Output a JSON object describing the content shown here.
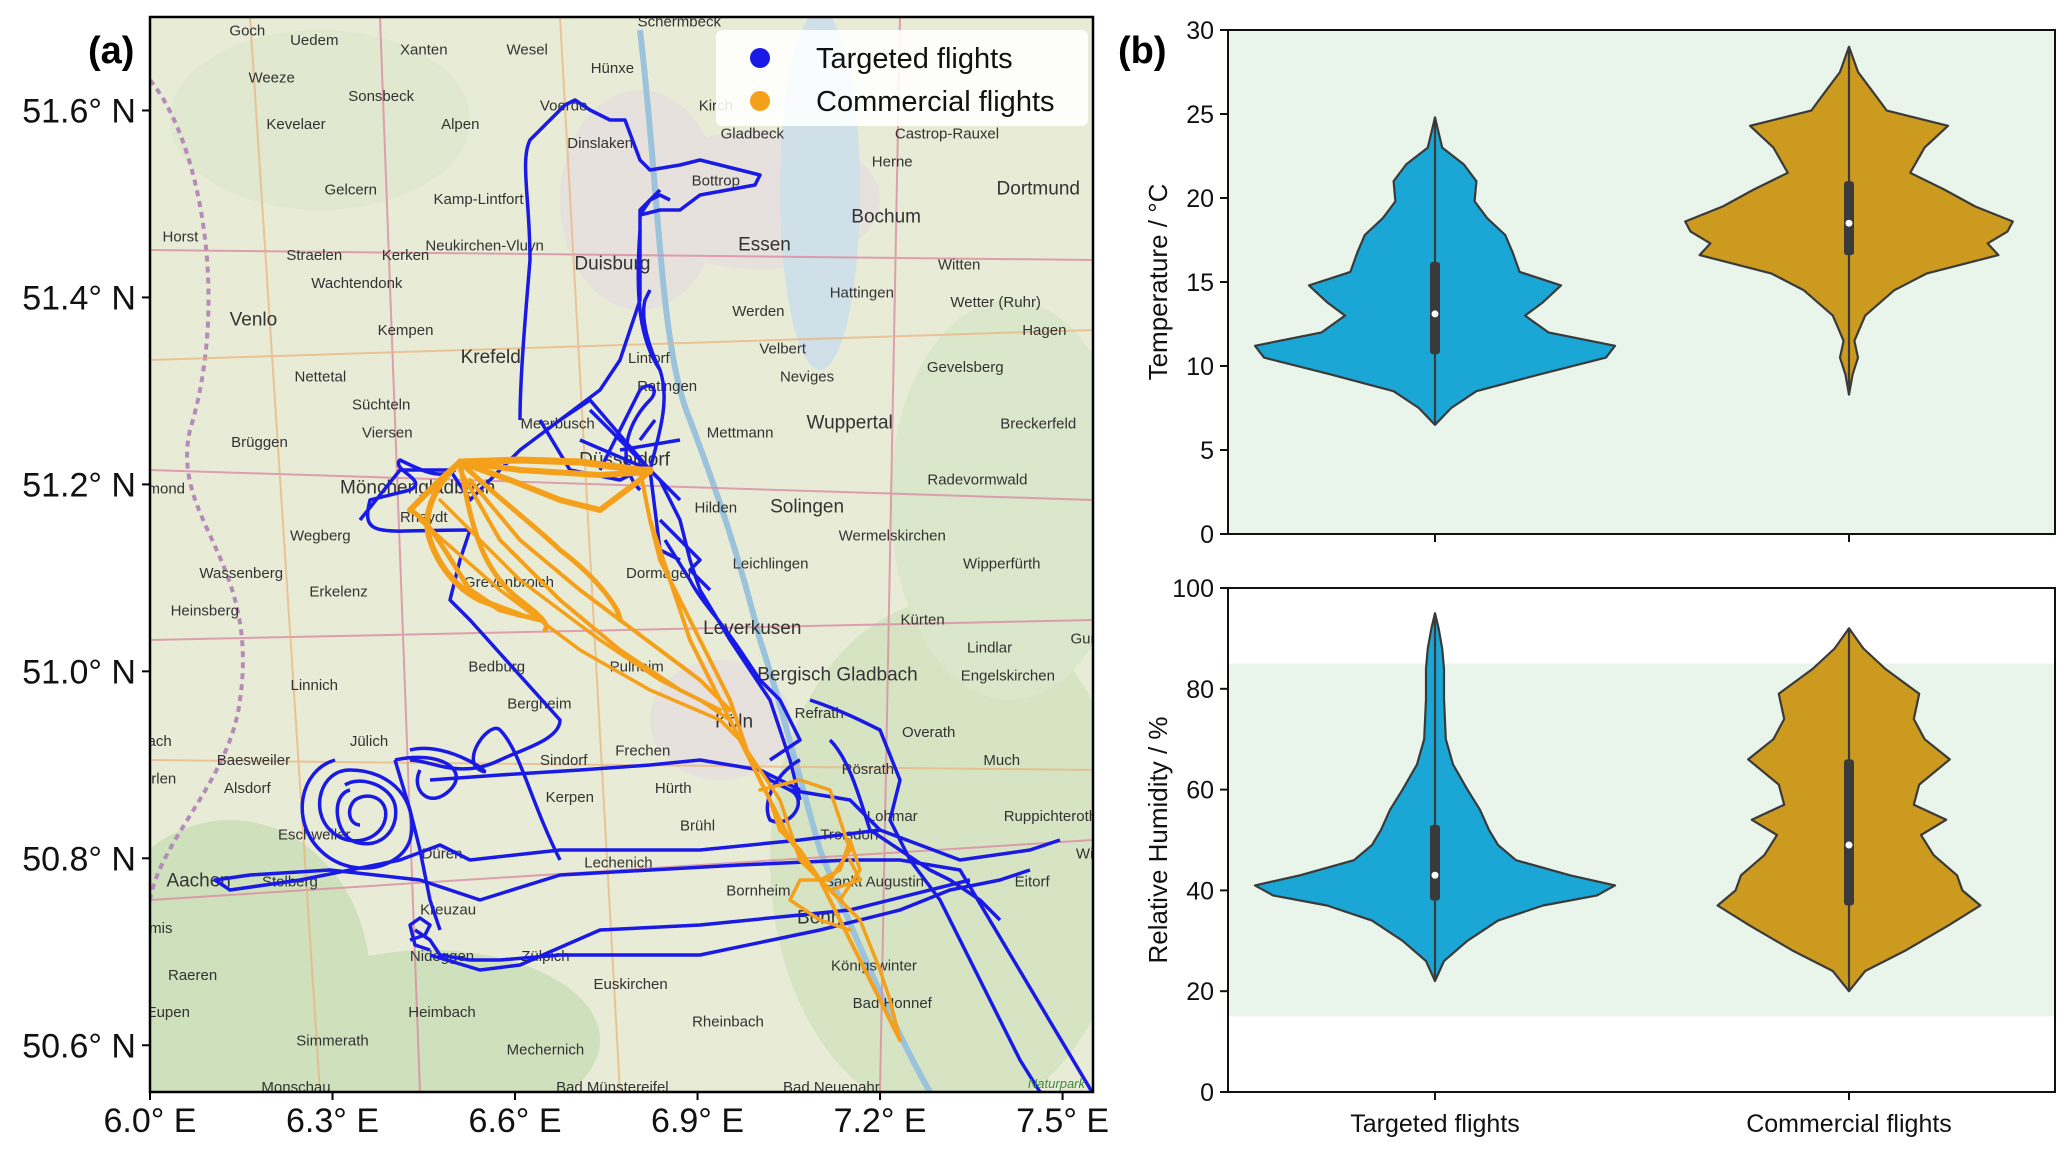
{
  "panel_a_label": "(a)",
  "panel_b_label": "(b)",
  "colors": {
    "targeted_track": "#1a1ae6",
    "commercial_track": "#f5a01a",
    "targeted_violin": "#1aa7d6",
    "commercial_violin": "#cc9a1e",
    "background_band": "#e9f4ea"
  },
  "chart_data": [
    {
      "type": "map",
      "panel": "(a)",
      "x_ticks": [
        "6.0° E",
        "6.3° E",
        "6.6° E",
        "6.9° E",
        "7.2° E",
        "7.5° E"
      ],
      "y_ticks": [
        "51.6° N",
        "51.4° N",
        "51.2° N",
        "51.0° N",
        "50.8° N",
        "50.6° N"
      ],
      "xlim": [
        6.0,
        7.55
      ],
      "ylim": [
        50.55,
        51.7
      ],
      "legend": [
        "Targeted flights",
        "Commercial flights"
      ],
      "legend_position": "top-right",
      "attribution": "Naturpark",
      "places": [
        {
          "name": "Schermbeck",
          "lon": 6.87,
          "lat": 51.69
        },
        {
          "name": "Goch",
          "lon": 6.16,
          "lat": 51.68
        },
        {
          "name": "Uedem",
          "lon": 6.27,
          "lat": 51.67
        },
        {
          "name": "Xanten",
          "lon": 6.45,
          "lat": 51.66
        },
        {
          "name": "Wesel",
          "lon": 6.62,
          "lat": 51.66
        },
        {
          "name": "Hünxe",
          "lon": 6.76,
          "lat": 51.64
        },
        {
          "name": "Weeze",
          "lon": 6.2,
          "lat": 51.63
        },
        {
          "name": "Sonsbeck",
          "lon": 6.38,
          "lat": 51.61
        },
        {
          "name": "Voerde",
          "lon": 6.68,
          "lat": 51.6
        },
        {
          "name": "Kirch",
          "lon": 6.93,
          "lat": 51.6
        },
        {
          "name": "Kevelaer",
          "lon": 6.24,
          "lat": 51.58
        },
        {
          "name": "Alpen",
          "lon": 6.51,
          "lat": 51.58
        },
        {
          "name": "Dinslaken",
          "lon": 6.74,
          "lat": 51.56
        },
        {
          "name": "Gladbeck",
          "lon": 6.99,
          "lat": 51.57
        },
        {
          "name": "Castrop-Rauxel",
          "lon": 7.31,
          "lat": 51.57
        },
        {
          "name": "Herne",
          "lon": 7.22,
          "lat": 51.54
        },
        {
          "name": "Gelcern",
          "lon": 6.33,
          "lat": 51.51
        },
        {
          "name": "Kamp-Lintfort",
          "lon": 6.54,
          "lat": 51.5
        },
        {
          "name": "Bottrop",
          "lon": 6.93,
          "lat": 51.52
        },
        {
          "name": "Dortmund",
          "lon": 7.46,
          "lat": 51.51
        },
        {
          "name": "Horst",
          "lon": 6.05,
          "lat": 51.46
        },
        {
          "name": "Kerken",
          "lon": 6.42,
          "lat": 51.44
        },
        {
          "name": "Neukirchen-Vluyn",
          "lon": 6.55,
          "lat": 51.45
        },
        {
          "name": "Essen",
          "lon": 7.01,
          "lat": 51.45
        },
        {
          "name": "Bochum",
          "lon": 7.21,
          "lat": 51.48
        },
        {
          "name": "Straelen",
          "lon": 6.27,
          "lat": 51.44
        },
        {
          "name": "Wachtendonk",
          "lon": 6.34,
          "lat": 51.41
        },
        {
          "name": "Duisburg",
          "lon": 6.76,
          "lat": 51.43
        },
        {
          "name": "Witten",
          "lon": 7.33,
          "lat": 51.43
        },
        {
          "name": "Hattingen",
          "lon": 7.17,
          "lat": 51.4
        },
        {
          "name": "Wetter (Ruhr)",
          "lon": 7.39,
          "lat": 51.39
        },
        {
          "name": "Venlo",
          "lon": 6.17,
          "lat": 51.37
        },
        {
          "name": "Kempen",
          "lon": 6.42,
          "lat": 51.36
        },
        {
          "name": "Werden",
          "lon": 7.0,
          "lat": 51.38
        },
        {
          "name": "Krefeld",
          "lon": 6.56,
          "lat": 51.33
        },
        {
          "name": "Lintorf",
          "lon": 6.82,
          "lat": 51.33
        },
        {
          "name": "Velbert",
          "lon": 7.04,
          "lat": 51.34
        },
        {
          "name": "Hagen",
          "lon": 7.47,
          "lat": 51.36
        },
        {
          "name": "Nettetal",
          "lon": 6.28,
          "lat": 51.31
        },
        {
          "name": "Neviges",
          "lon": 7.08,
          "lat": 51.31
        },
        {
          "name": "Gevelsberg",
          "lon": 7.34,
          "lat": 51.32
        },
        {
          "name": "Süchteln",
          "lon": 6.38,
          "lat": 51.28
        },
        {
          "name": "Ratingen",
          "lon": 6.85,
          "lat": 51.3
        },
        {
          "name": "Viersen",
          "lon": 6.39,
          "lat": 51.25
        },
        {
          "name": "Meerbusch",
          "lon": 6.67,
          "lat": 51.26
        },
        {
          "name": "Mettmann",
          "lon": 6.97,
          "lat": 51.25
        },
        {
          "name": "Wuppertal",
          "lon": 7.15,
          "lat": 51.26
        },
        {
          "name": "Breckerfeld",
          "lon": 7.46,
          "lat": 51.26
        },
        {
          "name": "Brüggen",
          "lon": 6.18,
          "lat": 51.24
        },
        {
          "name": "Düsseldorf",
          "lon": 6.78,
          "lat": 51.22
        },
        {
          "name": "Roermond",
          "lon": 6.0,
          "lat": 51.19
        },
        {
          "name": "Mönchengladbach",
          "lon": 6.44,
          "lat": 51.19
        },
        {
          "name": "Radevormwald",
          "lon": 7.36,
          "lat": 51.2
        },
        {
          "name": "Hilden",
          "lon": 6.93,
          "lat": 51.17
        },
        {
          "name": "Solingen",
          "lon": 7.08,
          "lat": 51.17
        },
        {
          "name": "Rheydt",
          "lon": 6.45,
          "lat": 51.16
        },
        {
          "name": "Wegberg",
          "lon": 6.28,
          "lat": 51.14
        },
        {
          "name": "Wermelskirchen",
          "lon": 7.22,
          "lat": 51.14
        },
        {
          "name": "Wassenberg",
          "lon": 6.15,
          "lat": 51.1
        },
        {
          "name": "Leichlingen",
          "lon": 7.02,
          "lat": 51.11
        },
        {
          "name": "Wipperfürth",
          "lon": 7.4,
          "lat": 51.11
        },
        {
          "name": "Erkelenz",
          "lon": 6.31,
          "lat": 51.08
        },
        {
          "name": "Grevenbroich",
          "lon": 6.59,
          "lat": 51.09
        },
        {
          "name": "Dormagen",
          "lon": 6.84,
          "lat": 51.1
        },
        {
          "name": "Heinsberg",
          "lon": 6.09,
          "lat": 51.06
        },
        {
          "name": "Kürten",
          "lon": 7.27,
          "lat": 51.05
        },
        {
          "name": "Leverkusen",
          "lon": 6.99,
          "lat": 51.04
        },
        {
          "name": "Lindlar",
          "lon": 7.38,
          "lat": 51.02
        },
        {
          "name": "Gumm",
          "lon": 7.55,
          "lat": 51.03
        },
        {
          "name": "Bedburg",
          "lon": 6.57,
          "lat": 51.0
        },
        {
          "name": "Pulheim",
          "lon": 6.8,
          "lat": 51.0
        },
        {
          "name": "Bergisch Gladbach",
          "lon": 7.13,
          "lat": 50.99
        },
        {
          "name": "Engelskirchen",
          "lon": 7.41,
          "lat": 50.99
        },
        {
          "name": "Linnich",
          "lon": 6.27,
          "lat": 50.98
        },
        {
          "name": "Bergheim",
          "lon": 6.64,
          "lat": 50.96
        },
        {
          "name": "Refrath",
          "lon": 7.1,
          "lat": 50.95
        },
        {
          "name": "Köln",
          "lon": 6.96,
          "lat": 50.94
        },
        {
          "name": "Übach",
          "lon": 6.0,
          "lat": 50.92
        },
        {
          "name": "Jülich",
          "lon": 6.36,
          "lat": 50.92
        },
        {
          "name": "Sindorf",
          "lon": 6.68,
          "lat": 50.9
        },
        {
          "name": "Frechen",
          "lon": 6.81,
          "lat": 50.91
        },
        {
          "name": "Overath",
          "lon": 7.28,
          "lat": 50.93
        },
        {
          "name": "Baesweiler",
          "lon": 6.17,
          "lat": 50.9
        },
        {
          "name": "Rösrath",
          "lon": 7.18,
          "lat": 50.89
        },
        {
          "name": "Much",
          "lon": 7.4,
          "lat": 50.9
        },
        {
          "name": "Heerlen",
          "lon": 6.0,
          "lat": 50.88
        },
        {
          "name": "Alsdorf",
          "lon": 6.16,
          "lat": 50.87
        },
        {
          "name": "Kerpen",
          "lon": 6.69,
          "lat": 50.86
        },
        {
          "name": "Hürth",
          "lon": 6.86,
          "lat": 50.87
        },
        {
          "name": "Lohmar",
          "lon": 7.22,
          "lat": 50.84
        },
        {
          "name": "Ruppichteroth",
          "lon": 7.48,
          "lat": 50.84
        },
        {
          "name": "Eschweiler",
          "lon": 6.27,
          "lat": 50.82
        },
        {
          "name": "Düren",
          "lon": 6.48,
          "lat": 50.8
        },
        {
          "name": "Brühl",
          "lon": 6.9,
          "lat": 50.83
        },
        {
          "name": "Troisdorf",
          "lon": 7.15,
          "lat": 50.82
        },
        {
          "name": "Lechenich",
          "lon": 6.77,
          "lat": 50.79
        },
        {
          "name": "Wind",
          "lon": 7.55,
          "lat": 50.8
        },
        {
          "name": "Aachen",
          "lon": 6.08,
          "lat": 50.77
        },
        {
          "name": "Stolberg",
          "lon": 6.23,
          "lat": 50.77
        },
        {
          "name": "Sankt Augustin",
          "lon": 7.19,
          "lat": 50.77
        },
        {
          "name": "Eitorf",
          "lon": 7.45,
          "lat": 50.77
        },
        {
          "name": "Bornheim",
          "lon": 7.0,
          "lat": 50.76
        },
        {
          "name": "Kelmis",
          "lon": 6.0,
          "lat": 50.72
        },
        {
          "name": "Kreuzau",
          "lon": 6.49,
          "lat": 50.74
        },
        {
          "name": "Bonn",
          "lon": 7.1,
          "lat": 50.73
        },
        {
          "name": "Nideggen",
          "lon": 6.48,
          "lat": 50.69
        },
        {
          "name": "Zülpich",
          "lon": 6.65,
          "lat": 50.69
        },
        {
          "name": "Raeren",
          "lon": 6.07,
          "lat": 50.67
        },
        {
          "name": "Euskirchen",
          "lon": 6.79,
          "lat": 50.66
        },
        {
          "name": "Königswinter",
          "lon": 7.19,
          "lat": 50.68
        },
        {
          "name": "Bad Honnef",
          "lon": 7.22,
          "lat": 50.64
        },
        {
          "name": "Eupen",
          "lon": 6.03,
          "lat": 50.63
        },
        {
          "name": "Heimbach",
          "lon": 6.48,
          "lat": 50.63
        },
        {
          "name": "Rheinbach",
          "lon": 6.95,
          "lat": 50.62
        },
        {
          "name": "Simmerath",
          "lon": 6.3,
          "lat": 50.6
        },
        {
          "name": "Mechernich",
          "lon": 6.65,
          "lat": 50.59
        },
        {
          "name": "Monschau",
          "lon": 6.24,
          "lat": 50.55
        },
        {
          "name": "Bad Münstereifel",
          "lon": 6.76,
          "lat": 50.55
        },
        {
          "name": "Bad Neuenahr",
          "lon": 7.12,
          "lat": 50.55
        }
      ]
    },
    {
      "type": "violin",
      "panel": "(b) top",
      "ylabel": "Temperature  / °C",
      "ylim": [
        0,
        30
      ],
      "yticks": [
        0,
        5,
        10,
        15,
        20,
        25,
        30
      ],
      "categories": [
        "Targeted flights",
        "Commercial flights"
      ],
      "background_band": [
        0,
        30
      ],
      "series": [
        {
          "name": "Targeted flights",
          "min": 6.5,
          "max": 24.8,
          "q1": 10.7,
          "median": 13.1,
          "q3": 16.2,
          "density": [
            [
              6.5,
              0.0
            ],
            [
              7.5,
              0.09
            ],
            [
              8.5,
              0.23
            ],
            [
              9.5,
              0.58
            ],
            [
              10.5,
              0.95
            ],
            [
              11.2,
              1.0
            ],
            [
              12.0,
              0.63
            ],
            [
              13.0,
              0.5
            ],
            [
              13.8,
              0.6
            ],
            [
              14.8,
              0.7
            ],
            [
              15.6,
              0.47
            ],
            [
              16.8,
              0.43
            ],
            [
              17.8,
              0.39
            ],
            [
              18.8,
              0.29
            ],
            [
              19.8,
              0.22
            ],
            [
              21.0,
              0.23
            ],
            [
              22.0,
              0.16
            ],
            [
              23.0,
              0.04
            ],
            [
              24.8,
              0.0
            ]
          ]
        },
        {
          "name": "Commercial flights",
          "min": 8.3,
          "max": 29.0,
          "q1": 16.6,
          "median": 18.5,
          "q3": 21.0,
          "density": [
            [
              8.3,
              0.0
            ],
            [
              9.5,
              0.02
            ],
            [
              10.5,
              0.05
            ],
            [
              11.5,
              0.03
            ],
            [
              13.0,
              0.09
            ],
            [
              14.5,
              0.25
            ],
            [
              15.5,
              0.43
            ],
            [
              16.6,
              0.83
            ],
            [
              17.3,
              0.77
            ],
            [
              18.0,
              0.88
            ],
            [
              18.6,
              0.91
            ],
            [
              19.5,
              0.7
            ],
            [
              20.5,
              0.53
            ],
            [
              21.5,
              0.34
            ],
            [
              23.0,
              0.42
            ],
            [
              24.3,
              0.55
            ],
            [
              25.2,
              0.21
            ],
            [
              26.5,
              0.12
            ],
            [
              27.5,
              0.05
            ],
            [
              29.0,
              0.0
            ]
          ]
        }
      ]
    },
    {
      "type": "violin",
      "panel": "(b) bottom",
      "ylabel": "Relative Humidity  /  %",
      "ylim": [
        0,
        100
      ],
      "yticks": [
        0,
        20,
        40,
        60,
        80,
        100
      ],
      "categories": [
        "Targeted flights",
        "Commercial flights"
      ],
      "background_band": [
        15,
        85
      ],
      "series": [
        {
          "name": "Targeted flights",
          "min": 22,
          "max": 95,
          "q1": 38,
          "median": 43,
          "q3": 53,
          "density": [
            [
              22,
              0.0
            ],
            [
              26,
              0.05
            ],
            [
              30,
              0.18
            ],
            [
              34,
              0.35
            ],
            [
              37,
              0.6
            ],
            [
              39,
              0.9
            ],
            [
              41,
              1.0
            ],
            [
              43,
              0.75
            ],
            [
              46,
              0.45
            ],
            [
              49,
              0.35
            ],
            [
              52,
              0.3
            ],
            [
              56,
              0.25
            ],
            [
              60,
              0.18
            ],
            [
              65,
              0.1
            ],
            [
              70,
              0.06
            ],
            [
              78,
              0.05
            ],
            [
              84,
              0.05
            ],
            [
              88,
              0.04
            ],
            [
              92,
              0.02
            ],
            [
              95,
              0.0
            ]
          ]
        },
        {
          "name": "Commercial flights",
          "min": 20,
          "max": 92,
          "q1": 37,
          "median": 49,
          "q3": 66,
          "density": [
            [
              20,
              0.0
            ],
            [
              24,
              0.09
            ],
            [
              28,
              0.31
            ],
            [
              33,
              0.55
            ],
            [
              37,
              0.73
            ],
            [
              40,
              0.63
            ],
            [
              43,
              0.6
            ],
            [
              47,
              0.47
            ],
            [
              51,
              0.4
            ],
            [
              54,
              0.54
            ],
            [
              57,
              0.36
            ],
            [
              61,
              0.39
            ],
            [
              66,
              0.56
            ],
            [
              70,
              0.42
            ],
            [
              74,
              0.36
            ],
            [
              79,
              0.39
            ],
            [
              84,
              0.2
            ],
            [
              88,
              0.08
            ],
            [
              92,
              0.0
            ]
          ]
        }
      ]
    }
  ]
}
